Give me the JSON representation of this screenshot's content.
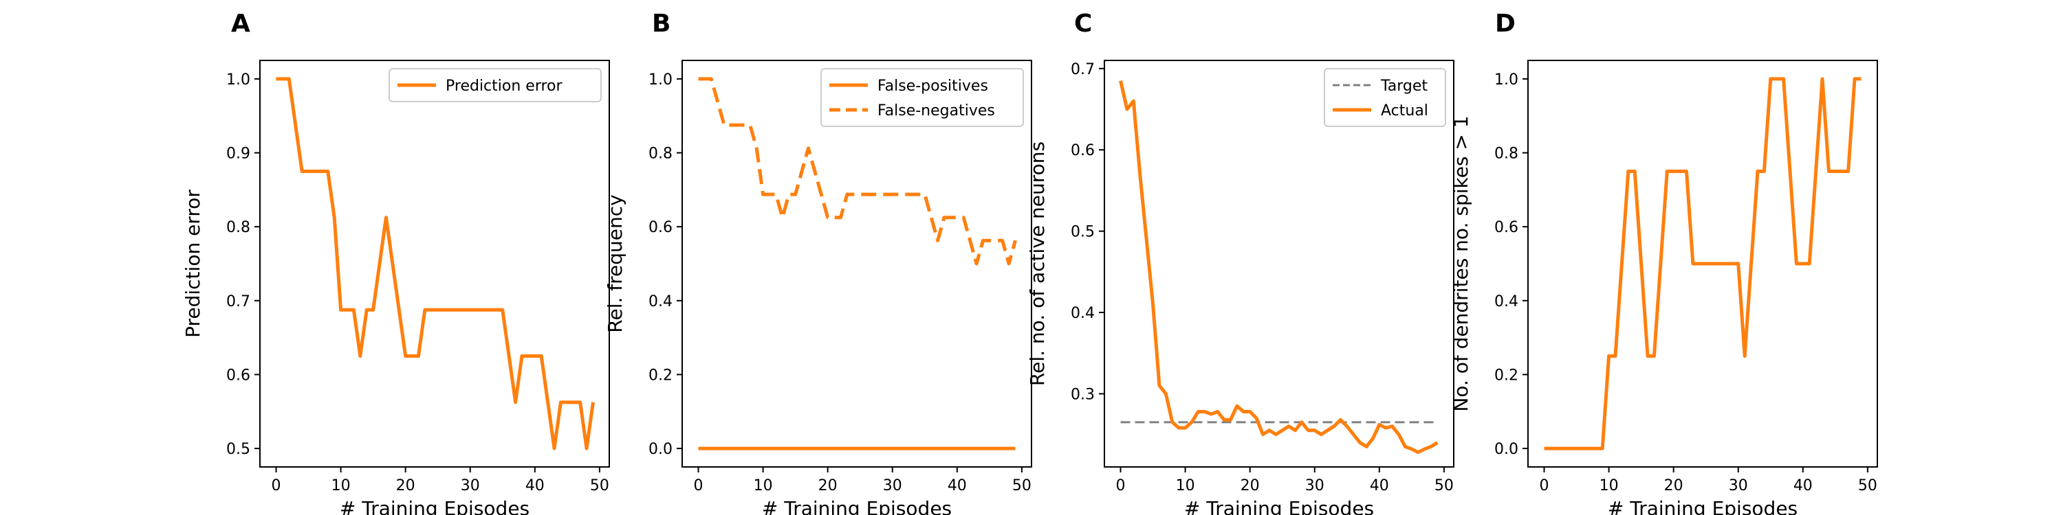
{
  "colors": {
    "accent": "#ff7f0e",
    "target": "#808080",
    "frame": "#000000"
  },
  "chart_data": [
    {
      "type": "line",
      "panel_letter": "A",
      "xlabel": "# Training Episodes",
      "ylabel": "Prediction error",
      "xlim": [
        -2.5,
        51.5
      ],
      "ylim": [
        0.475,
        1.025
      ],
      "x_ticks": [
        0,
        10,
        20,
        30,
        40,
        50
      ],
      "y_ticks": [
        0.5,
        0.6,
        0.7,
        0.8,
        0.9,
        1.0
      ],
      "y_tick_labels": [
        "0.5",
        "0.6",
        "0.7",
        "0.8",
        "0.9",
        "1.0"
      ],
      "legend_position": "upper-right",
      "series": [
        {
          "name": "Prediction error",
          "style": "solid",
          "x": [
            0,
            1,
            2,
            3,
            4,
            5,
            6,
            7,
            8,
            9,
            10,
            11,
            12,
            13,
            14,
            15,
            16,
            17,
            18,
            19,
            20,
            21,
            22,
            23,
            24,
            25,
            26,
            27,
            28,
            29,
            30,
            31,
            32,
            33,
            34,
            35,
            36,
            37,
            38,
            39,
            40,
            41,
            42,
            43,
            44,
            45,
            46,
            47,
            48,
            49
          ],
          "y": [
            1.0,
            1.0,
            1.0,
            0.9375,
            0.875,
            0.875,
            0.875,
            0.875,
            0.875,
            0.8125,
            0.6875,
            0.6875,
            0.6875,
            0.625,
            0.6875,
            0.6875,
            0.75,
            0.8125,
            0.75,
            0.6875,
            0.625,
            0.625,
            0.625,
            0.6875,
            0.6875,
            0.6875,
            0.6875,
            0.6875,
            0.6875,
            0.6875,
            0.6875,
            0.6875,
            0.6875,
            0.6875,
            0.6875,
            0.6875,
            0.625,
            0.5625,
            0.625,
            0.625,
            0.625,
            0.625,
            0.5625,
            0.5,
            0.5625,
            0.5625,
            0.5625,
            0.5625,
            0.5,
            0.5625
          ]
        }
      ]
    },
    {
      "type": "line",
      "panel_letter": "B",
      "xlabel": "# Training Episodes",
      "ylabel": "Rel. frequency",
      "xlim": [
        -2.5,
        51.5
      ],
      "ylim": [
        -0.05,
        1.05
      ],
      "x_ticks": [
        0,
        10,
        20,
        30,
        40,
        50
      ],
      "y_ticks": [
        0.0,
        0.2,
        0.4,
        0.6,
        0.8,
        1.0
      ],
      "y_tick_labels": [
        "0.0",
        "0.2",
        "0.4",
        "0.6",
        "0.8",
        "1.0"
      ],
      "legend_position": "upper-right",
      "series": [
        {
          "name": "False-positives",
          "style": "solid",
          "x": [
            0,
            49
          ],
          "y": [
            0.0,
            0.0
          ]
        },
        {
          "name": "False-negatives",
          "style": "dashed",
          "x": [
            0,
            1,
            2,
            3,
            4,
            5,
            6,
            7,
            8,
            9,
            10,
            11,
            12,
            13,
            14,
            15,
            16,
            17,
            18,
            19,
            20,
            21,
            22,
            23,
            24,
            25,
            26,
            27,
            28,
            29,
            30,
            31,
            32,
            33,
            34,
            35,
            36,
            37,
            38,
            39,
            40,
            41,
            42,
            43,
            44,
            45,
            46,
            47,
            48,
            49
          ],
          "y": [
            1.0,
            1.0,
            1.0,
            0.9375,
            0.875,
            0.875,
            0.875,
            0.875,
            0.875,
            0.8125,
            0.6875,
            0.6875,
            0.6875,
            0.625,
            0.6875,
            0.6875,
            0.75,
            0.8125,
            0.75,
            0.6875,
            0.625,
            0.625,
            0.625,
            0.6875,
            0.6875,
            0.6875,
            0.6875,
            0.6875,
            0.6875,
            0.6875,
            0.6875,
            0.6875,
            0.6875,
            0.6875,
            0.6875,
            0.6875,
            0.625,
            0.5625,
            0.625,
            0.625,
            0.625,
            0.625,
            0.5625,
            0.5,
            0.5625,
            0.5625,
            0.5625,
            0.5625,
            0.5,
            0.5625
          ]
        }
      ]
    },
    {
      "type": "line",
      "panel_letter": "C",
      "xlabel": "# Training Episodes",
      "ylabel": "Rel. no. of active neurons",
      "xlim": [
        -2.5,
        51.5
      ],
      "ylim": [
        0.21,
        0.71
      ],
      "x_ticks": [
        0,
        10,
        20,
        30,
        40,
        50
      ],
      "y_ticks": [
        0.3,
        0.4,
        0.5,
        0.6,
        0.7
      ],
      "y_tick_labels": [
        "0.3",
        "0.4",
        "0.5",
        "0.6",
        "0.7"
      ],
      "legend_position": "upper-right",
      "series": [
        {
          "name": "Target",
          "style": "dashed-gray",
          "x": [
            0,
            49
          ],
          "y": [
            0.265,
            0.265
          ]
        },
        {
          "name": "Actual",
          "style": "solid",
          "x": [
            0,
            1,
            2,
            3,
            4,
            5,
            6,
            7,
            8,
            9,
            10,
            11,
            12,
            13,
            14,
            15,
            16,
            17,
            18,
            19,
            20,
            21,
            22,
            23,
            24,
            25,
            26,
            27,
            28,
            29,
            30,
            31,
            32,
            33,
            34,
            35,
            36,
            37,
            38,
            39,
            40,
            41,
            42,
            43,
            44,
            45,
            46,
            47,
            48,
            49
          ],
          "y": [
            0.685,
            0.65,
            0.66,
            0.57,
            0.49,
            0.41,
            0.31,
            0.3,
            0.265,
            0.258,
            0.258,
            0.265,
            0.278,
            0.278,
            0.275,
            0.278,
            0.268,
            0.268,
            0.285,
            0.278,
            0.278,
            0.27,
            0.25,
            0.255,
            0.25,
            0.255,
            0.26,
            0.255,
            0.265,
            0.255,
            0.255,
            0.25,
            0.255,
            0.26,
            0.268,
            0.26,
            0.25,
            0.24,
            0.235,
            0.245,
            0.262,
            0.258,
            0.26,
            0.25,
            0.235,
            0.232,
            0.228,
            0.232,
            0.235,
            0.24
          ]
        }
      ]
    },
    {
      "type": "line",
      "panel_letter": "D",
      "xlabel": "# Training Episodes",
      "ylabel": "No. of dendrites no. spikes > 1",
      "xlim": [
        -2.5,
        51.5
      ],
      "ylim": [
        -0.05,
        1.05
      ],
      "x_ticks": [
        0,
        10,
        20,
        30,
        40,
        50
      ],
      "y_ticks": [
        0.0,
        0.2,
        0.4,
        0.6,
        0.8,
        1.0
      ],
      "y_tick_labels": [
        "0.0",
        "0.2",
        "0.4",
        "0.6",
        "0.8",
        "1.0"
      ],
      "legend_position": "none",
      "series": [
        {
          "name": "",
          "style": "solid",
          "x": [
            0,
            1,
            2,
            3,
            4,
            5,
            6,
            7,
            8,
            9,
            10,
            11,
            12,
            13,
            14,
            15,
            16,
            17,
            18,
            19,
            20,
            21,
            22,
            23,
            24,
            25,
            26,
            27,
            28,
            29,
            30,
            31,
            32,
            33,
            34,
            35,
            36,
            37,
            38,
            39,
            40,
            41,
            42,
            43,
            44,
            45,
            46,
            47,
            48,
            49
          ],
          "y": [
            0,
            0,
            0,
            0,
            0,
            0,
            0,
            0,
            0,
            0,
            0.25,
            0.25,
            0.5,
            0.75,
            0.75,
            0.5,
            0.25,
            0.25,
            0.5,
            0.75,
            0.75,
            0.75,
            0.75,
            0.5,
            0.5,
            0.5,
            0.5,
            0.5,
            0.5,
            0.5,
            0.5,
            0.25,
            0.5,
            0.75,
            0.75,
            1.0,
            1.0,
            1.0,
            0.75,
            0.5,
            0.5,
            0.5,
            0.75,
            1.0,
            0.75,
            0.75,
            0.75,
            0.75,
            1.0,
            1.0
          ]
        }
      ]
    }
  ]
}
